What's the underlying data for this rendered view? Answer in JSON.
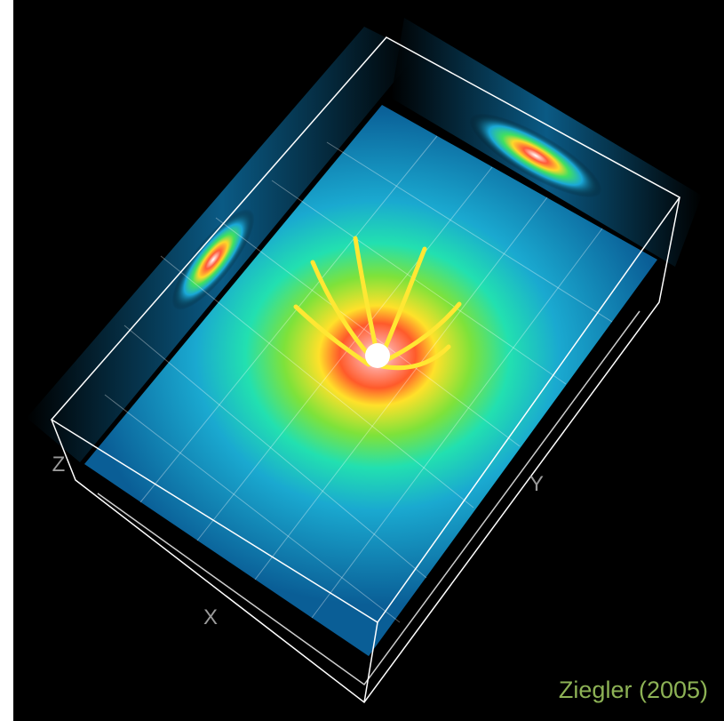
{
  "axis_labels": {
    "z": "Z",
    "y": "Y",
    "x": "X"
  },
  "credit": "Ziegler (2005)"
}
